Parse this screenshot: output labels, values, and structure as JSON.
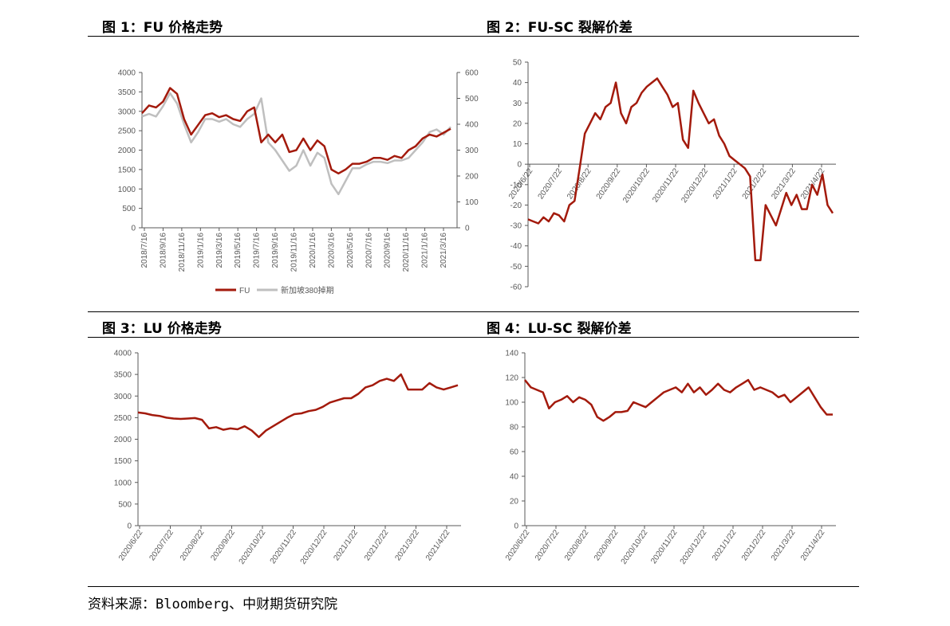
{
  "panels": [
    {
      "title": "图 1：FU 价格走势"
    },
    {
      "title": "图 2：FU-SC 裂解价差"
    },
    {
      "title": "图 3：LU 价格走势"
    },
    {
      "title": "图 4：LU-SC 裂解价差"
    }
  ],
  "footer": {
    "source": "资料来源：Bloomberg、中财期货研究院"
  },
  "colors": {
    "primary": "#A31A0C",
    "secondary": "#BFBFBF",
    "axis": "#595959"
  },
  "chart_data": [
    {
      "type": "line",
      "x_ticks": [
        "2018/7/16",
        "2018/9/16",
        "2018/11/16",
        "2019/1/16",
        "2019/3/16",
        "2019/5/16",
        "2019/7/16",
        "2019/9/16",
        "2019/11/16",
        "2020/1/16",
        "2020/3/16",
        "2020/5/16",
        "2020/7/16",
        "2020/9/16",
        "2020/11/16",
        "2021/1/16",
        "2021/3/16"
      ],
      "ylim": [
        0,
        4000
      ],
      "y_ticks": [
        0,
        500,
        1000,
        1500,
        2000,
        2500,
        3000,
        3500,
        4000
      ],
      "y2lim": [
        0,
        600
      ],
      "y2_ticks": [
        0,
        100,
        200,
        300,
        400,
        500,
        600
      ],
      "legend": "bottom",
      "series": [
        {
          "name": "FU",
          "axis": "left",
          "color": "#A31A0C",
          "values": [
            2950,
            3150,
            3100,
            3250,
            3600,
            3450,
            2800,
            2400,
            2650,
            2900,
            2950,
            2850,
            2900,
            2800,
            2750,
            3000,
            3100,
            2200,
            2400,
            2200,
            2400,
            1950,
            2000,
            2300,
            2000,
            2250,
            2100,
            1500,
            1400,
            1500,
            1650,
            1650,
            1700,
            1800,
            1800,
            1750,
            1850,
            1800,
            2000,
            2100,
            2300,
            2400,
            2350,
            2450,
            2550
          ]
        },
        {
          "name": "新加坡380掉期",
          "axis": "right",
          "color": "#BFBFBF",
          "values": [
            430,
            440,
            430,
            470,
            520,
            480,
            400,
            330,
            370,
            420,
            420,
            410,
            420,
            400,
            390,
            420,
            440,
            500,
            330,
            300,
            260,
            220,
            240,
            300,
            240,
            290,
            270,
            170,
            130,
            180,
            230,
            230,
            245,
            255,
            255,
            250,
            260,
            260,
            270,
            300,
            330,
            370,
            380,
            360,
            390
          ]
        }
      ]
    },
    {
      "type": "line",
      "x_ticks": [
        "2020/6/22",
        "2020/7/22",
        "2020/8/22",
        "2020/9/22",
        "2020/10/22",
        "2020/11/22",
        "2020/12/22",
        "2021/1/22",
        "2021/2/22",
        "2021/3/22",
        "2021/4/22"
      ],
      "ylim": [
        -60,
        50
      ],
      "y_ticks": [
        -60,
        -50,
        -40,
        -30,
        -20,
        -10,
        0,
        10,
        20,
        30,
        40,
        50
      ],
      "series": [
        {
          "name": "FU-SC",
          "color": "#A31A0C",
          "values": [
            -27,
            -28,
            -29,
            -26,
            -28,
            -24,
            -25,
            -28,
            -20,
            -18,
            -2,
            15,
            20,
            25,
            22,
            28,
            30,
            40,
            25,
            20,
            28,
            30,
            35,
            38,
            40,
            42,
            38,
            34,
            28,
            30,
            12,
            8,
            36,
            30,
            25,
            20,
            22,
            14,
            10,
            4,
            2,
            0,
            -2,
            -6,
            -47,
            -47,
            -20,
            -25,
            -30,
            -22,
            -14,
            -20,
            -15,
            -22,
            -22,
            -10,
            -15,
            -5,
            -20,
            -24
          ]
        }
      ]
    },
    {
      "type": "line",
      "x_ticks": [
        "2020/6/22",
        "2020/7/22",
        "2020/8/22",
        "2020/9/22",
        "2020/10/22",
        "2020/11/22",
        "2020/12/22",
        "2021/1/22",
        "2021/2/22",
        "2021/3/22",
        "2021/4/22"
      ],
      "ylim": [
        0,
        4000
      ],
      "y_ticks": [
        0,
        500,
        1000,
        1500,
        2000,
        2500,
        3000,
        3500,
        4000
      ],
      "series": [
        {
          "name": "LU",
          "color": "#A31A0C",
          "values": [
            2620,
            2600,
            2560,
            2540,
            2500,
            2480,
            2470,
            2480,
            2490,
            2450,
            2250,
            2280,
            2220,
            2250,
            2230,
            2300,
            2200,
            2050,
            2200,
            2300,
            2400,
            2500,
            2580,
            2600,
            2650,
            2680,
            2750,
            2850,
            2900,
            2950,
            2950,
            3050,
            3200,
            3250,
            3350,
            3400,
            3350,
            3500,
            3150,
            3150,
            3150,
            3300,
            3200,
            3150,
            3200,
            3250
          ]
        }
      ]
    },
    {
      "type": "line",
      "x_ticks": [
        "2020/6/22",
        "2020/7/22",
        "2020/8/22",
        "2020/9/22",
        "2020/10/22",
        "2020/11/22",
        "2020/12/22",
        "2021/1/22",
        "2021/2/22",
        "2021/3/22",
        "2021/4/22"
      ],
      "ylim": [
        0,
        140
      ],
      "y_ticks": [
        0,
        20,
        40,
        60,
        80,
        100,
        120,
        140
      ],
      "series": [
        {
          "name": "LU-SC",
          "color": "#A31A0C",
          "values": [
            118,
            112,
            110,
            108,
            95,
            100,
            102,
            105,
            100,
            104,
            102,
            98,
            88,
            85,
            88,
            92,
            92,
            93,
            100,
            98,
            96,
            100,
            104,
            108,
            110,
            112,
            108,
            115,
            108,
            112,
            106,
            110,
            115,
            110,
            108,
            112,
            115,
            118,
            110,
            112,
            110,
            108,
            104,
            106,
            100,
            104,
            108,
            112,
            104,
            96,
            90,
            90
          ]
        }
      ]
    }
  ]
}
